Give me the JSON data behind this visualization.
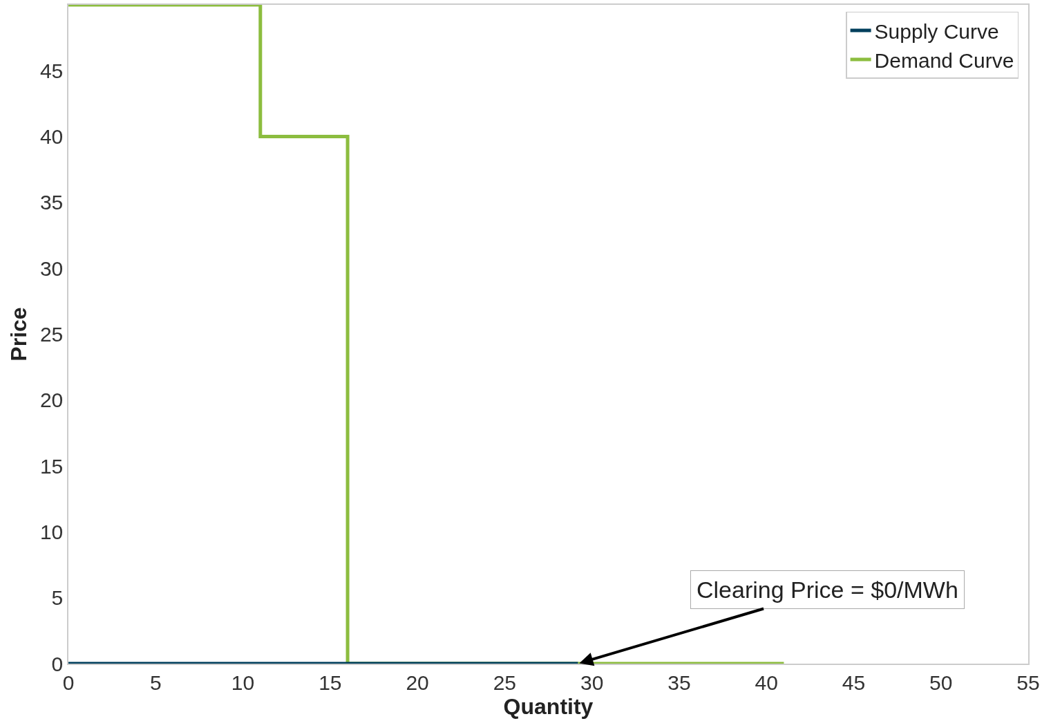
{
  "chart_data": {
    "type": "step",
    "xlabel": "Quantity",
    "ylabel": "Price",
    "series": [
      {
        "name": "Supply Curve",
        "color": "#003f5c",
        "x": [
          0,
          29.2
        ],
        "values": [
          0,
          0
        ]
      },
      {
        "name": "Demand Curve",
        "color": "#8cbd3f",
        "x": [
          0,
          11,
          16,
          41
        ],
        "values": [
          50,
          40,
          0,
          0
        ]
      }
    ],
    "annotations": [
      {
        "text": "Clearing Price = $0/MWh",
        "x": 29.2,
        "y": 0
      }
    ],
    "xlim": [
      0,
      55
    ],
    "xticks": [
      0,
      5,
      10,
      15,
      20,
      25,
      30,
      35,
      40,
      45,
      50,
      55
    ],
    "ylim": [
      0,
      50
    ],
    "yticks": [
      0,
      5,
      10,
      15,
      20,
      25,
      30,
      35,
      40,
      45
    ],
    "grid": false,
    "legend": "top right",
    "marker": "none",
    "line_style": "solid"
  }
}
